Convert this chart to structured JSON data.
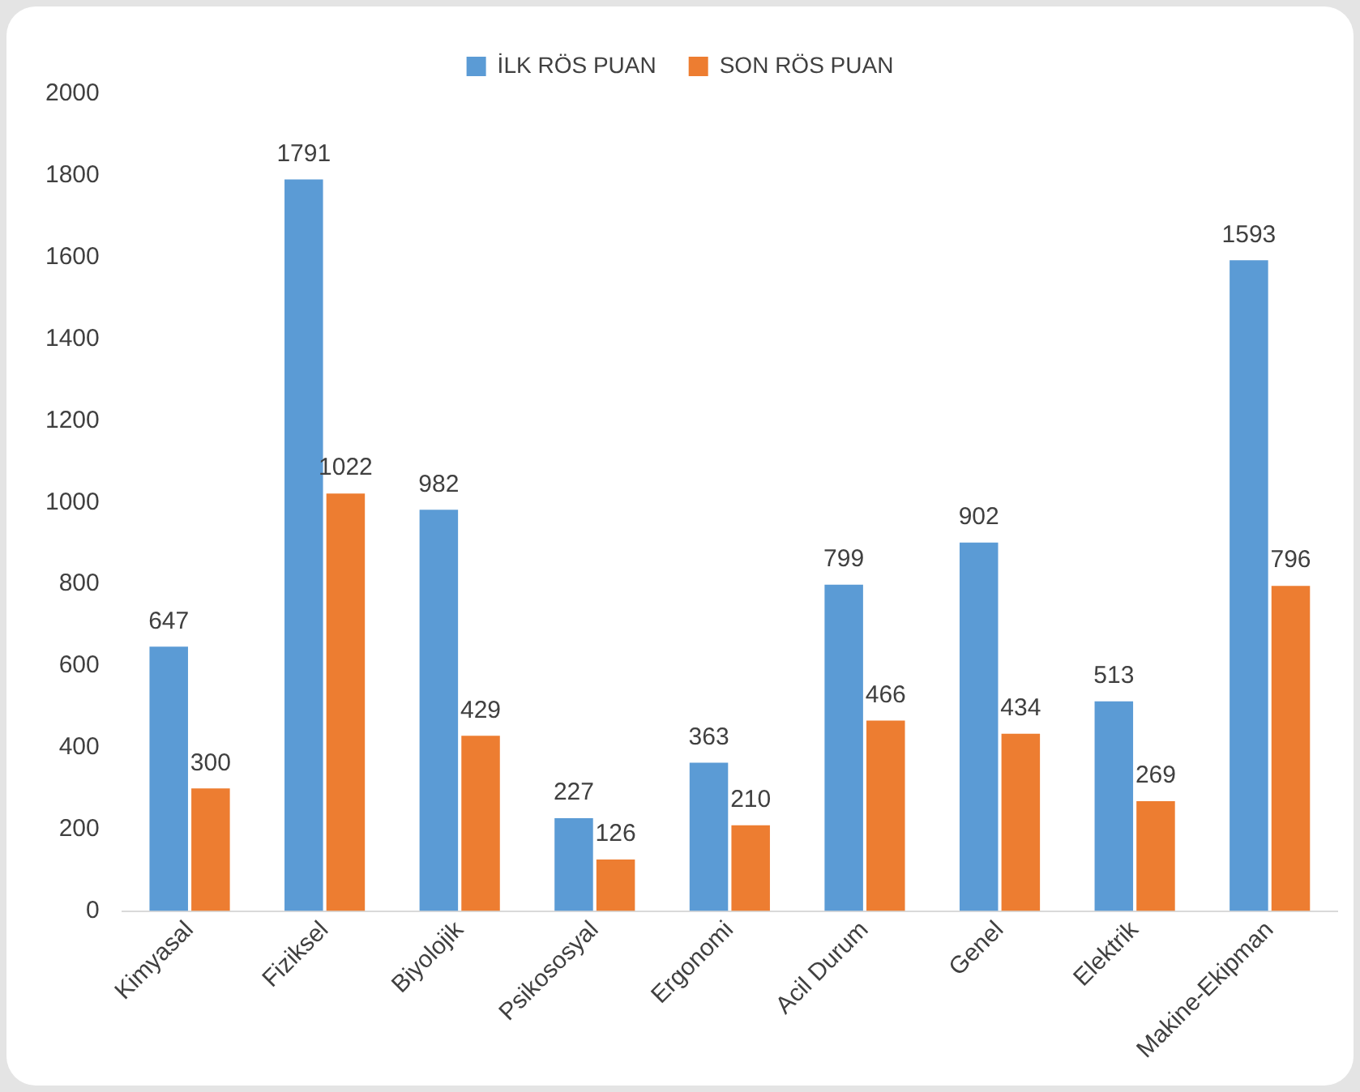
{
  "chart_data": {
    "type": "bar",
    "categories": [
      "Kimyasal",
      "Fiziksel",
      "Biyolojik",
      "Psikososyal",
      "Ergonomi",
      "Acil Durum",
      "Genel",
      "Elektrik",
      "Makine-Ekipman"
    ],
    "series": [
      {
        "name": "İLK RÖS PUAN",
        "color": "#5b9bd5",
        "values": [
          647,
          1791,
          982,
          227,
          363,
          799,
          902,
          513,
          1593
        ]
      },
      {
        "name": "SON RÖS PUAN",
        "color": "#ed7d31",
        "values": [
          300,
          1022,
          429,
          126,
          210,
          466,
          434,
          269,
          796
        ]
      }
    ],
    "ylim": [
      0,
      2000
    ],
    "yticks": [
      0,
      200,
      400,
      600,
      800,
      1000,
      1200,
      1400,
      1600,
      1800,
      2000
    ],
    "grid": false,
    "legend": "top",
    "data_labels": true
  }
}
